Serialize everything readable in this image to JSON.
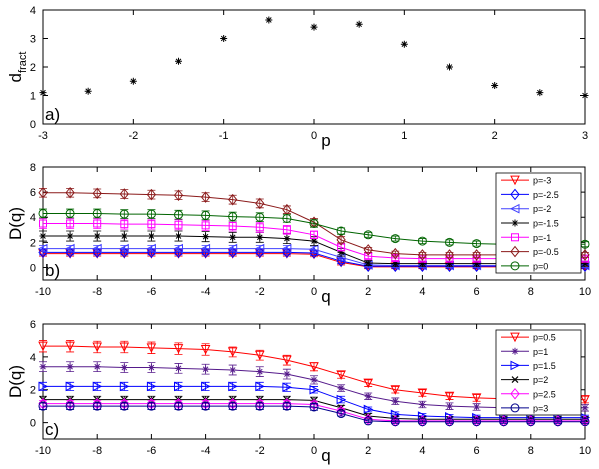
{
  "chart_data": [
    {
      "type": "scatter",
      "panel_label": "a)",
      "xlabel": "p",
      "ylabel": "d",
      "ylabel_sub": "fract",
      "xlim": [
        -3,
        3
      ],
      "ylim": [
        0,
        4
      ],
      "xticks": [
        -3,
        -2,
        -1,
        0,
        1,
        2,
        3
      ],
      "yticks": [
        0,
        1,
        2,
        3,
        4
      ],
      "marker": "star",
      "x": [
        -3,
        -2.5,
        -2,
        -1.5,
        -1,
        -0.5,
        0,
        0.5,
        1,
        1.5,
        2,
        2.5,
        3
      ],
      "y": [
        1.1,
        1.15,
        1.5,
        2.2,
        3.0,
        3.65,
        3.4,
        3.5,
        2.8,
        2.0,
        1.35,
        1.1,
        1.0
      ]
    },
    {
      "type": "line",
      "panel_label": "b)",
      "xlabel": "q",
      "ylabel": "D(q)",
      "xlim": [
        -10,
        10
      ],
      "ylim": [
        -1,
        8
      ],
      "xticks": [
        -10,
        -8,
        -6,
        -4,
        -2,
        0,
        2,
        4,
        6,
        8,
        10
      ],
      "yticks": [
        0,
        2,
        4,
        6,
        8
      ],
      "legend": "top-right",
      "x": [
        -10,
        -9,
        -8,
        -7,
        -6,
        -5,
        -4,
        -3,
        -2,
        -1,
        0,
        1,
        2,
        3,
        4,
        5,
        6,
        7,
        8,
        9,
        10
      ],
      "series": [
        {
          "name": "p=-3",
          "color": "#ff0000",
          "marker": "triangle-down",
          "values": [
            1.1,
            1.1,
            1.1,
            1.1,
            1.1,
            1.1,
            1.1,
            1.1,
            1.1,
            1.1,
            1.05,
            0.4,
            0.05,
            0.05,
            0.05,
            0.05,
            0.05,
            0.05,
            0.05,
            0.05,
            0.05
          ],
          "errors": [
            0.2,
            0.2,
            0.2,
            0.2,
            0.2,
            0.2,
            0.2,
            0.2,
            0.2,
            0.2,
            0.2,
            0.2,
            0.15,
            0.15,
            0.15,
            0.15,
            0.15,
            0.15,
            0.15,
            0.15,
            0.15
          ]
        },
        {
          "name": "p=-2.5",
          "color": "#0000ff",
          "marker": "diamond",
          "values": [
            1.2,
            1.2,
            1.2,
            1.2,
            1.2,
            1.2,
            1.2,
            1.2,
            1.2,
            1.2,
            1.15,
            0.5,
            0.1,
            0.1,
            0.1,
            0.1,
            0.1,
            0.1,
            0.1,
            0.1,
            0.1
          ],
          "errors": [
            0.2,
            0.2,
            0.2,
            0.2,
            0.2,
            0.2,
            0.2,
            0.2,
            0.2,
            0.2,
            0.2,
            0.2,
            0.15,
            0.15,
            0.15,
            0.15,
            0.15,
            0.15,
            0.15,
            0.15,
            0.15
          ]
        },
        {
          "name": "p=-2",
          "color": "#4040ff",
          "marker": "triangle-left",
          "values": [
            1.5,
            1.5,
            1.5,
            1.5,
            1.5,
            1.5,
            1.5,
            1.5,
            1.5,
            1.5,
            1.45,
            0.8,
            0.2,
            0.15,
            0.15,
            0.15,
            0.15,
            0.15,
            0.15,
            0.15,
            0.15
          ],
          "errors": [
            0.25,
            0.25,
            0.25,
            0.25,
            0.25,
            0.25,
            0.25,
            0.25,
            0.25,
            0.25,
            0.25,
            0.2,
            0.15,
            0.15,
            0.15,
            0.15,
            0.15,
            0.15,
            0.15,
            0.15,
            0.15
          ]
        },
        {
          "name": "p=-1.5",
          "color": "#000000",
          "marker": "star",
          "values": [
            2.5,
            2.5,
            2.5,
            2.5,
            2.5,
            2.5,
            2.45,
            2.4,
            2.4,
            2.3,
            2.1,
            1.2,
            0.35,
            0.3,
            0.3,
            0.3,
            0.3,
            0.3,
            0.3,
            0.3,
            0.3
          ],
          "errors": [
            0.4,
            0.4,
            0.4,
            0.4,
            0.4,
            0.4,
            0.4,
            0.4,
            0.4,
            0.4,
            0.35,
            0.3,
            0.2,
            0.2,
            0.2,
            0.2,
            0.2,
            0.2,
            0.2,
            0.2,
            0.2
          ]
        },
        {
          "name": "p=-1",
          "color": "#ff00ff",
          "marker": "square",
          "values": [
            3.5,
            3.5,
            3.5,
            3.45,
            3.45,
            3.4,
            3.35,
            3.3,
            3.2,
            3.0,
            2.6,
            1.6,
            0.9,
            0.75,
            0.7,
            0.7,
            0.7,
            0.7,
            0.7,
            0.7,
            0.7
          ],
          "errors": [
            0.4,
            0.4,
            0.4,
            0.4,
            0.4,
            0.4,
            0.4,
            0.4,
            0.4,
            0.35,
            0.3,
            0.25,
            0.2,
            0.2,
            0.2,
            0.2,
            0.2,
            0.2,
            0.2,
            0.2,
            0.2
          ]
        },
        {
          "name": "p=-0.5",
          "color": "#8b1a1a",
          "marker": "diamond",
          "values": [
            5.95,
            5.95,
            5.9,
            5.85,
            5.8,
            5.75,
            5.6,
            5.4,
            5.1,
            4.6,
            3.6,
            2.2,
            1.4,
            1.1,
            1.0,
            1.0,
            1.0,
            1.0,
            1.0,
            1.0,
            1.0
          ],
          "errors": [
            0.35,
            0.35,
            0.35,
            0.35,
            0.35,
            0.35,
            0.35,
            0.35,
            0.35,
            0.3,
            0.3,
            0.25,
            0.2,
            0.2,
            0.2,
            0.2,
            0.2,
            0.2,
            0.2,
            0.2,
            0.2
          ]
        },
        {
          "name": "p=0",
          "color": "#006400",
          "marker": "circle",
          "values": [
            4.3,
            4.3,
            4.3,
            4.25,
            4.25,
            4.2,
            4.15,
            4.05,
            4.0,
            3.9,
            3.5,
            2.9,
            2.6,
            2.3,
            2.1,
            2.0,
            1.9,
            1.85,
            1.85,
            1.85,
            1.85
          ],
          "errors": [
            0.35,
            0.35,
            0.35,
            0.35,
            0.35,
            0.35,
            0.35,
            0.35,
            0.35,
            0.3,
            0.3,
            0.25,
            0.2,
            0.2,
            0.2,
            0.2,
            0.2,
            0.2,
            0.2,
            0.2,
            0.2
          ]
        }
      ]
    },
    {
      "type": "line",
      "panel_label": "c)",
      "xlabel": "q",
      "ylabel": "D(q)",
      "xlim": [
        -10,
        10
      ],
      "ylim": [
        -1,
        6
      ],
      "xticks": [
        -10,
        -8,
        -6,
        -4,
        -2,
        0,
        2,
        4,
        6,
        8,
        10
      ],
      "yticks": [
        0,
        2,
        4,
        6
      ],
      "legend": "top-right",
      "x": [
        -10,
        -9,
        -8,
        -7,
        -6,
        -5,
        -4,
        -3,
        -2,
        -1,
        0,
        1,
        2,
        3,
        4,
        5,
        6,
        7,
        8,
        9,
        10
      ],
      "series": [
        {
          "name": "p=0.5",
          "color": "#ff0000",
          "marker": "triangle-down",
          "values": [
            4.65,
            4.65,
            4.6,
            4.6,
            4.55,
            4.5,
            4.45,
            4.3,
            4.1,
            3.8,
            3.4,
            2.9,
            2.4,
            2.0,
            1.8,
            1.6,
            1.5,
            1.45,
            1.4,
            1.4,
            1.4
          ],
          "errors": [
            0.35,
            0.35,
            0.35,
            0.35,
            0.35,
            0.35,
            0.35,
            0.3,
            0.3,
            0.3,
            0.25,
            0.2,
            0.2,
            0.2,
            0.2,
            0.2,
            0.2,
            0.2,
            0.2,
            0.2,
            0.2
          ]
        },
        {
          "name": "p=1",
          "color": "#551a8b",
          "marker": "star",
          "values": [
            3.4,
            3.4,
            3.4,
            3.35,
            3.35,
            3.3,
            3.25,
            3.2,
            3.1,
            2.95,
            2.6,
            2.1,
            1.6,
            1.3,
            1.1,
            1.0,
            0.95,
            0.9,
            0.9,
            0.9,
            0.9
          ],
          "errors": [
            0.3,
            0.3,
            0.3,
            0.3,
            0.3,
            0.3,
            0.3,
            0.3,
            0.3,
            0.3,
            0.25,
            0.2,
            0.2,
            0.2,
            0.2,
            0.2,
            0.2,
            0.2,
            0.2,
            0.2,
            0.2
          ]
        },
        {
          "name": "p=1.5",
          "color": "#0000ff",
          "marker": "triangle-right",
          "values": [
            2.2,
            2.2,
            2.2,
            2.2,
            2.2,
            2.2,
            2.2,
            2.2,
            2.2,
            2.15,
            2.0,
            1.4,
            0.8,
            0.5,
            0.4,
            0.35,
            0.3,
            0.3,
            0.3,
            0.3,
            0.3
          ],
          "errors": [
            0.25,
            0.25,
            0.25,
            0.25,
            0.25,
            0.25,
            0.25,
            0.25,
            0.25,
            0.25,
            0.2,
            0.2,
            0.15,
            0.15,
            0.15,
            0.15,
            0.15,
            0.15,
            0.15,
            0.15,
            0.15
          ]
        },
        {
          "name": "p=2",
          "color": "#000000",
          "marker": "x",
          "values": [
            1.4,
            1.4,
            1.4,
            1.4,
            1.4,
            1.4,
            1.4,
            1.4,
            1.4,
            1.4,
            1.35,
            0.9,
            0.4,
            0.25,
            0.2,
            0.2,
            0.2,
            0.2,
            0.2,
            0.2,
            0.2
          ],
          "errors": [
            0.2,
            0.2,
            0.2,
            0.2,
            0.2,
            0.2,
            0.2,
            0.2,
            0.2,
            0.2,
            0.2,
            0.15,
            0.15,
            0.15,
            0.15,
            0.15,
            0.15,
            0.15,
            0.15,
            0.15,
            0.15
          ]
        },
        {
          "name": "p=2.5",
          "color": "#ff00ff",
          "marker": "diamond",
          "values": [
            1.15,
            1.15,
            1.15,
            1.15,
            1.15,
            1.15,
            1.15,
            1.15,
            1.15,
            1.15,
            1.1,
            0.7,
            0.2,
            0.1,
            0.1,
            0.1,
            0.1,
            0.1,
            0.1,
            0.1,
            0.1
          ],
          "errors": [
            0.2,
            0.2,
            0.2,
            0.2,
            0.2,
            0.2,
            0.2,
            0.2,
            0.2,
            0.2,
            0.2,
            0.15,
            0.1,
            0.1,
            0.1,
            0.1,
            0.1,
            0.1,
            0.1,
            0.1,
            0.1
          ]
        },
        {
          "name": "p=3",
          "color": "#00008b",
          "marker": "circle",
          "values": [
            1.0,
            1.0,
            1.0,
            1.0,
            1.0,
            1.0,
            1.0,
            1.0,
            1.0,
            1.0,
            0.95,
            0.55,
            0.1,
            0.05,
            0.05,
            0.05,
            0.05,
            0.05,
            0.05,
            0.05,
            0.05
          ],
          "errors": [
            0.2,
            0.2,
            0.2,
            0.2,
            0.2,
            0.2,
            0.2,
            0.2,
            0.2,
            0.2,
            0.2,
            0.15,
            0.1,
            0.1,
            0.1,
            0.1,
            0.1,
            0.1,
            0.1,
            0.1,
            0.1
          ]
        }
      ]
    }
  ]
}
